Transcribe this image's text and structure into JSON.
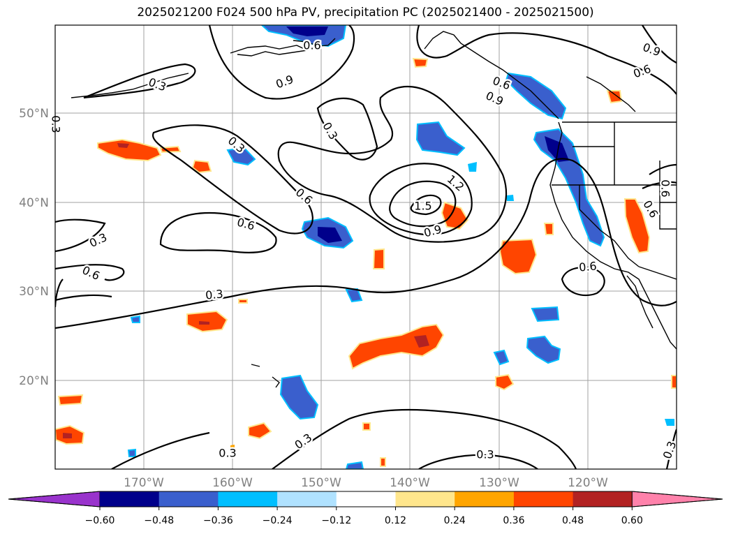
{
  "title": "2025021200 F024 500 hPa PV, precipitation PC (2025021400 - 2025021500)",
  "map": {
    "lat_labels": [
      "50°N",
      "40°N",
      "30°N",
      "20°N"
    ],
    "lon_labels": [
      "170°W",
      "160°W",
      "150°W",
      "140°W",
      "130°W",
      "120°W"
    ],
    "grid_color": "#a0a0a0",
    "contour_color": "#000000"
  },
  "contour_labels": [
    "0.6",
    "0.3",
    "0.9",
    "0.3",
    "0.3",
    "0.6",
    "1.2",
    "1.5",
    "0.9",
    "0.6",
    "0.3",
    "0.6",
    "0.3",
    "0.6",
    "0.3",
    "0.3",
    "0.3",
    "0.9",
    "0.6",
    "0.6",
    "0.6",
    "0.9",
    "0.6",
    "0.3",
    "0.3"
  ],
  "colorbar": {
    "ticks": [
      "−0.60",
      "−0.48",
      "−0.36",
      "−0.24",
      "−0.12",
      "0.12",
      "0.24",
      "0.36",
      "0.48",
      "0.60"
    ],
    "colors": [
      "#9933cc",
      "#00008b",
      "#3a5fcd",
      "#00bfff",
      "#b0e2ff",
      "#ffffff",
      "#ffe68c",
      "#ffa500",
      "#ff4500",
      "#b22222",
      "#ff82ab"
    ]
  }
}
